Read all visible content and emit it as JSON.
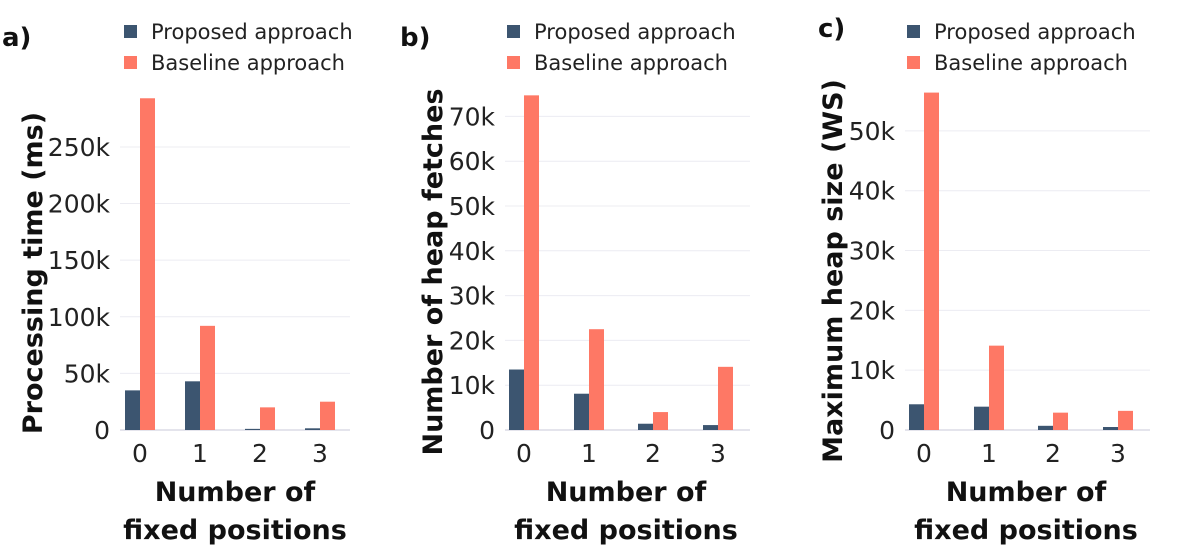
{
  "colors": {
    "proposed": "#3c5570",
    "baseline": "#fe7865"
  },
  "chart_data": [
    {
      "type": "bar",
      "panel": "a)",
      "categories": [
        "0",
        "1",
        "2",
        "3"
      ],
      "ylabel": "Processing time (ms)",
      "xlabel_lines": [
        "Number of",
        "fixed positions"
      ],
      "ylim": [
        0,
        295000
      ],
      "yticks": [
        0,
        50000,
        100000,
        150000,
        200000,
        250000
      ],
      "ytick_labels": [
        "0",
        "50k",
        "100k",
        "150k",
        "200k",
        "250k"
      ],
      "series": [
        {
          "name": "Proposed approach",
          "values": [
            35000,
            43000,
            1000,
            1500
          ]
        },
        {
          "name": "Baseline approach",
          "values": [
            293000,
            92000,
            20000,
            25000
          ]
        }
      ],
      "legend": "top"
    },
    {
      "type": "bar",
      "panel": "b)",
      "categories": [
        "0",
        "1",
        "2",
        "3"
      ],
      "ylabel": "Number of heap fetches",
      "xlabel_lines": [
        "Number of",
        "fixed positions"
      ],
      "ylim": [
        0,
        75000
      ],
      "yticks": [
        0,
        10000,
        20000,
        30000,
        40000,
        50000,
        60000,
        70000
      ],
      "ytick_labels": [
        "0",
        "10k",
        "20k",
        "30k",
        "40k",
        "50k",
        "60k",
        "70k"
      ],
      "series": [
        {
          "name": "Proposed approach",
          "values": [
            13500,
            8100,
            1400,
            1100
          ]
        },
        {
          "name": "Baseline approach",
          "values": [
            74700,
            22500,
            4000,
            14100
          ]
        }
      ],
      "legend": "top"
    },
    {
      "type": "bar",
      "panel": "c)",
      "categories": [
        "0",
        "1",
        "2",
        "3"
      ],
      "ylabel": "Maximum heap size (WS)",
      "xlabel_lines": [
        "Number of",
        "fixed positions"
      ],
      "ylim": [
        0,
        56500
      ],
      "yticks": [
        0,
        10000,
        20000,
        30000,
        40000,
        50000
      ],
      "ytick_labels": [
        "0",
        "10k",
        "20k",
        "30k",
        "40k",
        "50k"
      ],
      "series": [
        {
          "name": "Proposed approach",
          "values": [
            4300,
            3900,
            700,
            500
          ]
        },
        {
          "name": "Baseline approach",
          "values": [
            56400,
            14100,
            2900,
            3200
          ]
        }
      ],
      "legend": "top"
    }
  ]
}
